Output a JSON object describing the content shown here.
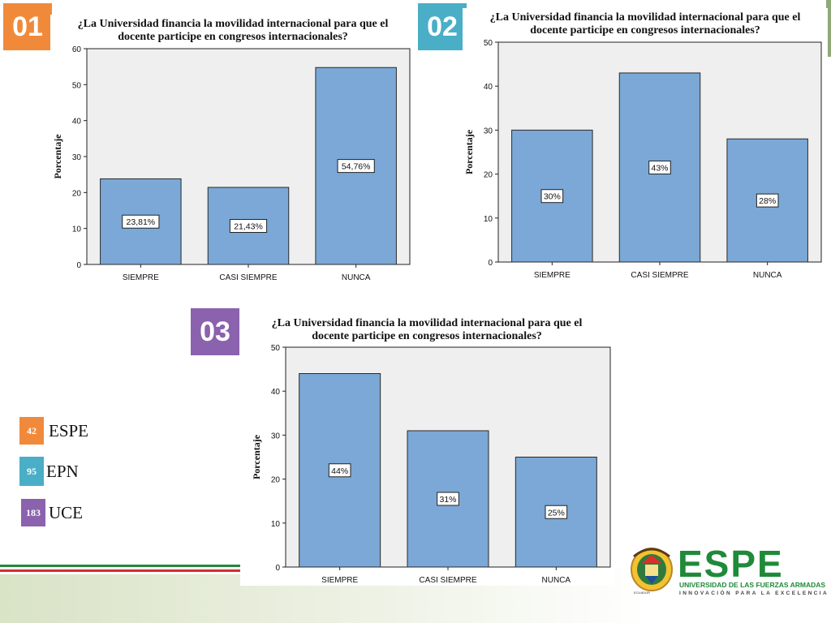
{
  "colors": {
    "tag01": "#f08a3a",
    "tag02": "#4aaec7",
    "tag03": "#8b62ad",
    "bar_fill": "#7ba8d6",
    "bar_stroke": "#2a2a2a",
    "plot_bg": "#efefef"
  },
  "tags": [
    "01",
    "02",
    "03"
  ],
  "legend": [
    {
      "value": "42",
      "label": "ESPE",
      "color": "#f08a3a"
    },
    {
      "value": "95",
      "label": "EPN",
      "color": "#4aaec7"
    },
    {
      "value": "183",
      "label": "UCE",
      "color": "#8b62ad"
    }
  ],
  "logo": {
    "name": "ESPE",
    "subtitle": "UNIVERSIDAD DE LAS FUERZAS ARMADAS",
    "tagline": "INNOVACIÓN PARA LA EXCELENCIA",
    "seal_text": "ECUADOR"
  },
  "chart_data": [
    {
      "type": "bar",
      "title_line1": "¿La Universidad financia la movilidad internacional para  que el",
      "title_line2": "docente participe en congresos internacionales?",
      "ylabel": "Porcentaje",
      "categories": [
        "SIEMPRE",
        "CASI SIEMPRE",
        "NUNCA"
      ],
      "values": [
        23.81,
        21.43,
        54.76
      ],
      "labels": [
        "23,81%",
        "21,43%",
        "54,76%"
      ],
      "ylim": [
        0,
        60
      ],
      "yticks": [
        "0",
        "10",
        "20",
        "30",
        "40",
        "50",
        "60"
      ]
    },
    {
      "type": "bar",
      "title_line1": "¿La Universidad financia la movilidad internacional para  que el",
      "title_line2": "docente participe en congresos internacionales?",
      "ylabel": "Porcentaje",
      "categories": [
        "SIEMPRE",
        "CASI SIEMPRE",
        "NUNCA"
      ],
      "values": [
        30,
        43,
        28
      ],
      "labels": [
        "30%",
        "43%",
        "28%"
      ],
      "ylim": [
        0,
        50
      ],
      "yticks": [
        "0",
        "10",
        "20",
        "30",
        "40",
        "50"
      ]
    },
    {
      "type": "bar",
      "title_line1": "¿La Universidad financia la movilidad internacional para  que el",
      "title_line2": "docente participe en congresos internacionales?",
      "ylabel": "Porcentaje",
      "categories": [
        "SIEMPRE",
        "CASI SIEMPRE",
        "NUNCA"
      ],
      "values": [
        44,
        31,
        25
      ],
      "labels": [
        "44%",
        "31%",
        "25%"
      ],
      "ylim": [
        0,
        50
      ],
      "yticks": [
        "0",
        "10",
        "20",
        "30",
        "40",
        "50"
      ]
    }
  ]
}
